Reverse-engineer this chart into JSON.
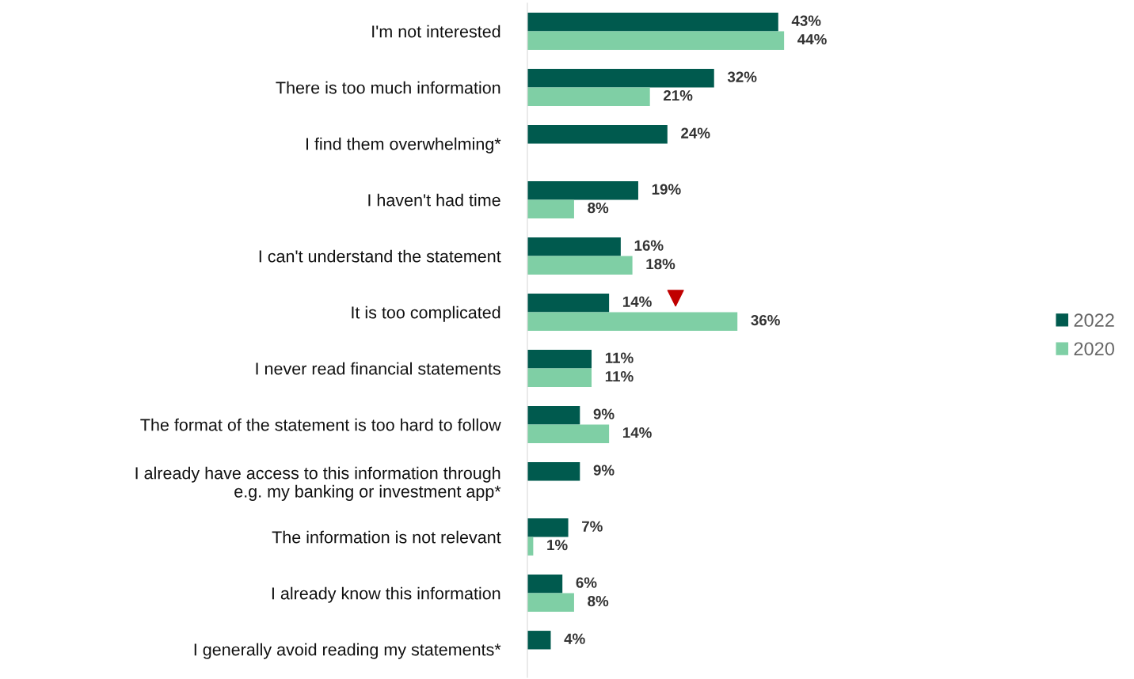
{
  "chart_data": {
    "type": "bar",
    "orientation": "horizontal",
    "legend": "right",
    "grid": false,
    "categories": [
      "I'm not interested",
      "There is too much information",
      "I find them overwhelming*",
      "I haven't had time",
      "I can't understand the statement",
      "It is too complicated",
      "I never read financial statements",
      "The format of the statement is too hard to follow",
      "I already have access to this information through\ne.g. my banking or investment app*",
      "The information is not relevant",
      "I already know this information",
      "I generally avoid reading my statements*"
    ],
    "series": [
      {
        "name": "2022",
        "color": "#005a4e",
        "values": [
          43,
          32,
          24,
          19,
          16,
          14,
          11,
          9,
          9,
          7,
          6,
          4
        ],
        "value_labels": [
          "43%",
          "32%",
          "24%",
          "19%",
          "16%",
          "14%",
          "11%",
          "9%",
          "9%",
          "7%",
          "6%",
          "4%"
        ]
      },
      {
        "name": "2020",
        "color": "#7fcfa5",
        "values": [
          44,
          21,
          null,
          8,
          18,
          36,
          11,
          14,
          null,
          1,
          8,
          null
        ],
        "value_labels": [
          "44%",
          "21%",
          null,
          "8%",
          "18%",
          "36%",
          "11%",
          "14%",
          null,
          "1%",
          "8%",
          null
        ]
      }
    ]
  }
}
